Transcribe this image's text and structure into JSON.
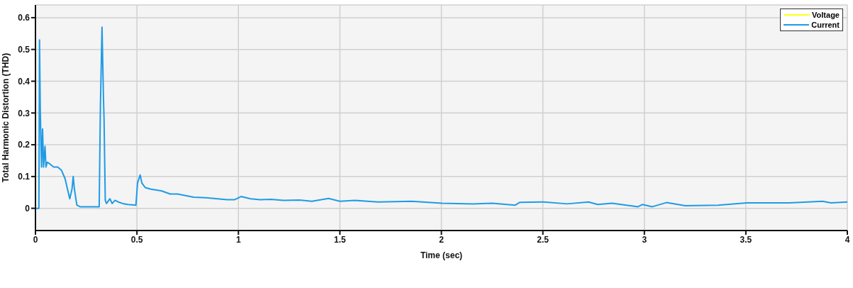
{
  "chart_data": {
    "type": "line",
    "xlabel": "Time (sec)",
    "ylabel": "Total Harmonic Distortion (THD)",
    "xlim": [
      0,
      4
    ],
    "xticks": [
      0,
      0.5,
      1,
      1.5,
      2,
      2.5,
      3,
      3.5,
      4
    ],
    "ylim": [
      -0.07,
      0.64
    ],
    "yticks": [
      0,
      0.1,
      0.2,
      0.3,
      0.4,
      0.5,
      0.6
    ],
    "grid": true,
    "legend": "top right",
    "line_style": "solid",
    "marker": "none",
    "series": [
      {
        "name": "Voltage",
        "color": "#ffff1a"
      },
      {
        "name": "Current",
        "color": "#1f9be6",
        "x": [
          0,
          0.017,
          0.02,
          0.024,
          0.03,
          0.035,
          0.04,
          0.047,
          0.052,
          0.058,
          0.07,
          0.09,
          0.11,
          0.128,
          0.146,
          0.169,
          0.18,
          0.186,
          0.192,
          0.204,
          0.22,
          0.314,
          0.32,
          0.328,
          0.335,
          0.338,
          0.344,
          0.35,
          0.367,
          0.378,
          0.392,
          0.408,
          0.43,
          0.454,
          0.495,
          0.503,
          0.516,
          0.524,
          0.541,
          0.57,
          0.62,
          0.664,
          0.7,
          0.74,
          0.78,
          0.84,
          0.897,
          0.944,
          0.98,
          1.013,
          1.06,
          1.106,
          1.16,
          1.223,
          1.3,
          1.362,
          1.444,
          1.5,
          1.572,
          1.688,
          1.852,
          2.003,
          2.154,
          2.25,
          2.364,
          2.387,
          2.504,
          2.62,
          2.725,
          2.77,
          2.841,
          2.969,
          2.99,
          3.039,
          3.109,
          3.202,
          3.365,
          3.505,
          3.714,
          3.878,
          3.92,
          4
        ],
        "values": [
          0,
          0,
          0.53,
          0.3,
          0.13,
          0.25,
          0.13,
          0.195,
          0.13,
          0.145,
          0.14,
          0.13,
          0.13,
          0.12,
          0.093,
          0.03,
          0.06,
          0.1,
          0.06,
          0.01,
          0.005,
          0.005,
          0.32,
          0.57,
          0.35,
          0.28,
          0.025,
          0.015,
          0.03,
          0.015,
          0.025,
          0.02,
          0.015,
          0.012,
          0.01,
          0.08,
          0.105,
          0.08,
          0.065,
          0.06,
          0.055,
          0.045,
          0.045,
          0.04,
          0.035,
          0.033,
          0.03,
          0.027,
          0.027,
          0.037,
          0.03,
          0.027,
          0.028,
          0.025,
          0.026,
          0.022,
          0.031,
          0.022,
          0.025,
          0.02,
          0.022,
          0.016,
          0.014,
          0.016,
          0.01,
          0.019,
          0.02,
          0.014,
          0.02,
          0.012,
          0.016,
          0.005,
          0.012,
          0.005,
          0.018,
          0.008,
          0.01,
          0.017,
          0.017,
          0.022,
          0.017,
          0.02
        ]
      }
    ]
  }
}
